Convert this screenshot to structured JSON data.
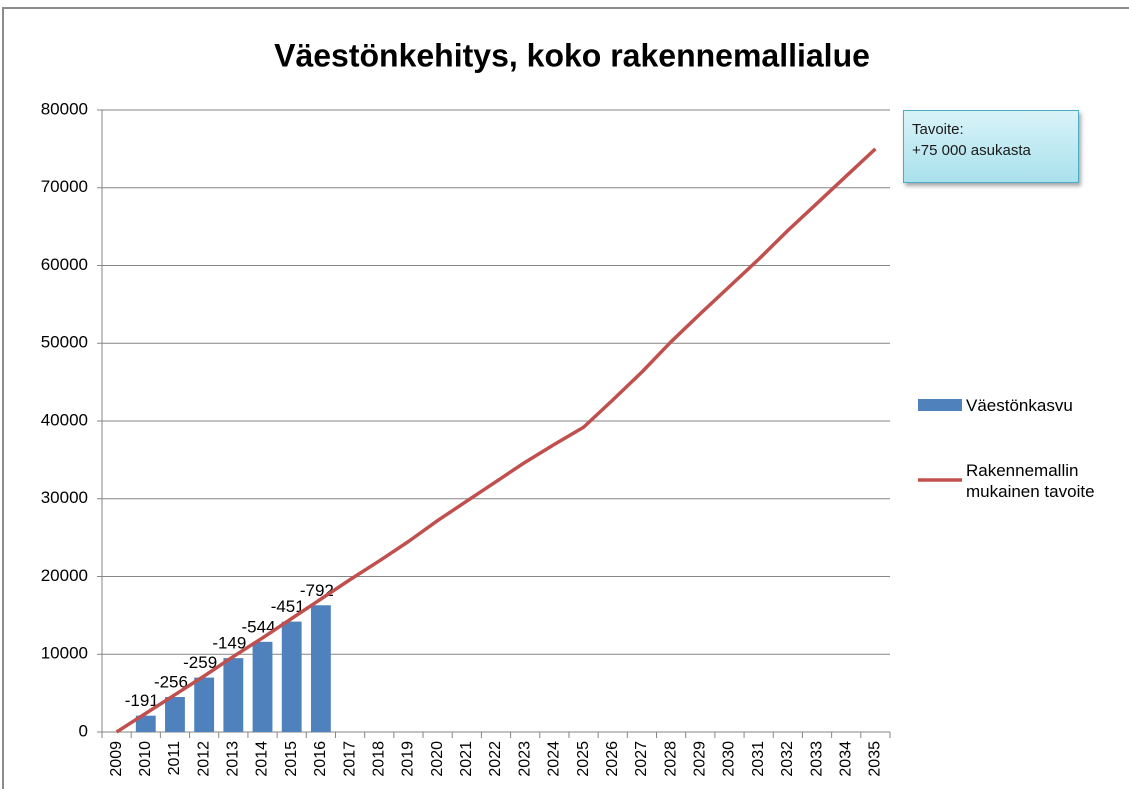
{
  "chart_data": {
    "type": "bar_line",
    "title": "Väestönkehitys, koko rakennemallialue",
    "categories": [
      "2009",
      "2010",
      "2011",
      "2012",
      "2013",
      "2014",
      "2015",
      "2016",
      "2017",
      "2018",
      "2019",
      "2020",
      "2021",
      "2022",
      "2023",
      "2024",
      "2025",
      "2026",
      "2027",
      "2028",
      "2029",
      "2030",
      "2031",
      "2032",
      "2033",
      "2034",
      "2035"
    ],
    "series": [
      {
        "name": "Väestönkasvu",
        "type": "bar",
        "color": "#4f81bd",
        "values": [
          null,
          2100,
          4500,
          7000,
          9500,
          11600,
          14200,
          16300,
          null,
          null,
          null,
          null,
          null,
          null,
          null,
          null,
          null,
          null,
          null,
          null,
          null,
          null,
          null,
          null,
          null,
          null,
          null
        ],
        "deviations": [
          null,
          -191,
          -256,
          -259,
          -149,
          -544,
          -451,
          -792,
          null,
          null,
          null,
          null,
          null,
          null,
          null,
          null,
          null,
          null,
          null,
          null,
          null,
          null,
          null,
          null,
          null,
          null,
          null
        ]
      },
      {
        "name": "Rakennemallin mukainen tavoite",
        "type": "line",
        "color": "#c0504d",
        "values": [
          0,
          2400,
          4800,
          7200,
          9700,
          12100,
          14600,
          17100,
          19600,
          22000,
          24500,
          27200,
          29700,
          32200,
          34700,
          37000,
          39200,
          42700,
          46300,
          50200,
          53800,
          57300,
          60800,
          64500,
          68000,
          71500,
          75000
        ]
      }
    ],
    "annotation": [
      "Tavoite:",
      "+75 000 asukasta"
    ],
    "ylim": [
      0,
      80000
    ],
    "yticks": [
      0,
      10000,
      20000,
      30000,
      40000,
      50000,
      60000,
      70000,
      80000
    ],
    "grid": true
  }
}
